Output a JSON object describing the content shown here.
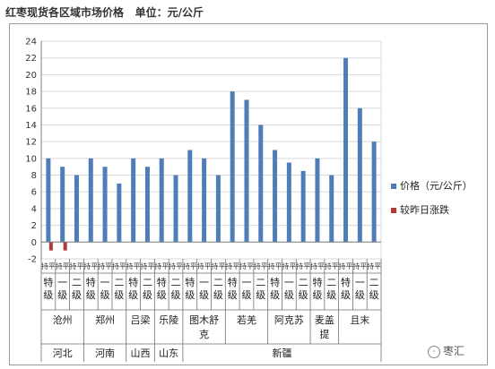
{
  "header": {
    "title": "红枣现货各区域市场价格",
    "unit_label": "单位：元/公斤"
  },
  "watermark": {
    "text": "枣汇"
  },
  "chart_data": {
    "type": "bar",
    "grid": "horizontal",
    "ylim": [
      -2,
      24
    ],
    "yticks": [
      -2,
      0,
      2,
      4,
      6,
      8,
      10,
      12,
      14,
      16,
      18,
      20,
      22,
      24
    ],
    "legend_position": "right",
    "colors": {
      "price": "#4F7DB8",
      "change": "#B13A35",
      "grid": "#d9d9d9",
      "axis": "#7f7f7f"
    },
    "categories": [
      {
        "grade": "特级",
        "market": "沧州",
        "province": "河北"
      },
      {
        "grade": "一级",
        "market": "沧州",
        "province": "河北"
      },
      {
        "grade": "二级",
        "market": "沧州",
        "province": "河北"
      },
      {
        "grade": "特级",
        "market": "郑州",
        "province": "河南"
      },
      {
        "grade": "一级",
        "market": "郑州",
        "province": "河南"
      },
      {
        "grade": "二级",
        "market": "郑州",
        "province": "河南"
      },
      {
        "grade": "特级",
        "market": "吕梁",
        "province": "山西"
      },
      {
        "grade": "二级",
        "market": "吕梁",
        "province": "山西"
      },
      {
        "grade": "特级",
        "market": "乐陵",
        "province": "山东"
      },
      {
        "grade": "二级",
        "market": "乐陵",
        "province": "山东"
      },
      {
        "grade": "特级",
        "market": "图木舒克",
        "province": "新疆"
      },
      {
        "grade": "一级",
        "market": "图木舒克",
        "province": "新疆"
      },
      {
        "grade": "二级",
        "market": "图木舒克",
        "province": "新疆"
      },
      {
        "grade": "特级",
        "market": "若羌",
        "province": "新疆"
      },
      {
        "grade": "一级",
        "market": "若羌",
        "province": "新疆"
      },
      {
        "grade": "二级",
        "market": "若羌",
        "province": "新疆"
      },
      {
        "grade": "特级",
        "market": "阿克苏",
        "province": "新疆"
      },
      {
        "grade": "一级",
        "market": "阿克苏",
        "province": "新疆"
      },
      {
        "grade": "二级",
        "market": "阿克苏",
        "province": "新疆"
      },
      {
        "grade": "特级",
        "market": "麦盖提",
        "province": "新疆"
      },
      {
        "grade": "二级",
        "market": "麦盖提",
        "province": "新疆"
      },
      {
        "grade": "特级",
        "market": "且末",
        "province": "新疆"
      },
      {
        "grade": "一级",
        "market": "且末",
        "province": "新疆"
      },
      {
        "grade": "二级",
        "market": "且末",
        "province": "新疆"
      }
    ],
    "series": [
      {
        "name": "价格（元/公斤）",
        "values": [
          10,
          9,
          8,
          10,
          9,
          7,
          10,
          9,
          10,
          8,
          11,
          10,
          8,
          18,
          17,
          14,
          11,
          9.5,
          8.5,
          10,
          8,
          22,
          16,
          12
        ]
      },
      {
        "name": "较昨日涨跌",
        "values": [
          -1,
          -1,
          0,
          0,
          0,
          0,
          0,
          0,
          0,
          0,
          0,
          0,
          0,
          0,
          0,
          0,
          0,
          0,
          0,
          0,
          0,
          0,
          0,
          0
        ]
      }
    ],
    "change_row_text": "持平"
  }
}
